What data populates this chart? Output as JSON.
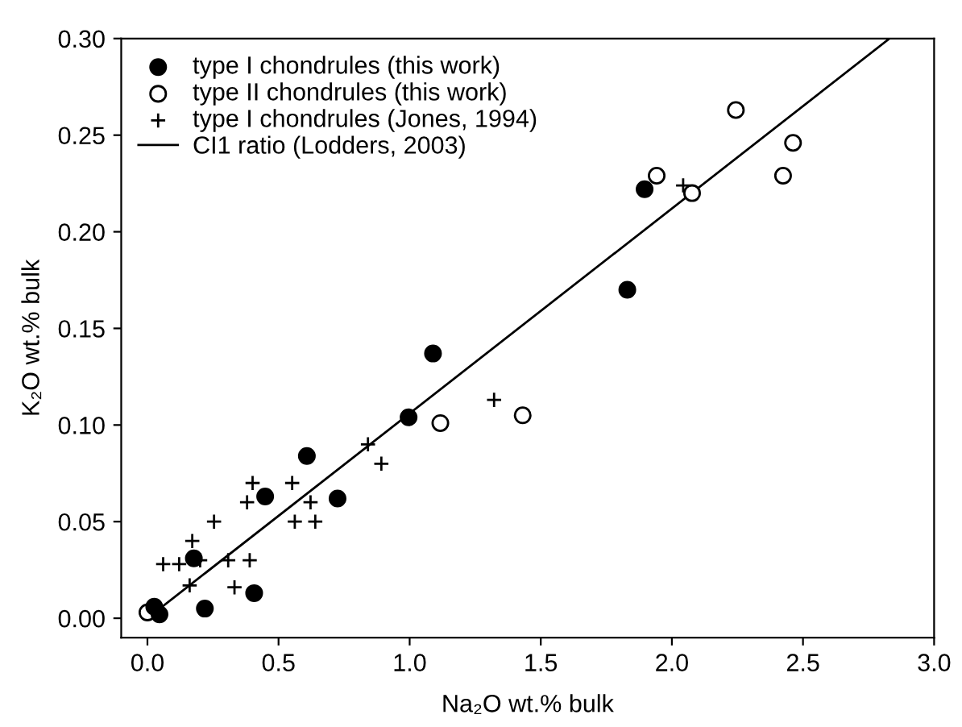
{
  "chart_data": {
    "type": "scatter",
    "xlabel": "Na₂O wt.% bulk",
    "ylabel": "K₂O wt.% bulk",
    "xlim": [
      -0.1,
      3.0
    ],
    "ylim": [
      -0.01,
      0.3
    ],
    "xticks": [
      {
        "value": 0,
        "label": "0.0"
      },
      0.5,
      {
        "value": 1,
        "label": "1.0"
      },
      1.5,
      {
        "value": 2,
        "label": "2.0"
      },
      2.5,
      {
        "value": 3,
        "label": "3.0"
      }
    ],
    "yticks": [
      {
        "value": 0,
        "label": "0.00"
      },
      0.05,
      {
        "value": 0.1,
        "label": "0.10"
      },
      0.15,
      {
        "value": 0.2,
        "label": "0.20"
      },
      0.25,
      {
        "value": 0.3,
        "label": "0.30"
      }
    ],
    "grid": false,
    "legend": "top left",
    "series": [
      {
        "name": "type I chondrules (this work)",
        "marker": "circle",
        "color": "#000000",
        "x": [
          0.026,
          0.046,
          0.177,
          0.219,
          0.407,
          0.449,
          0.608,
          0.725,
          0.996,
          1.089,
          1.896,
          1.83
        ],
        "values": [
          0.006,
          0.002,
          0.031,
          0.005,
          0.013,
          0.063,
          0.084,
          0.062,
          0.104,
          0.137,
          0.222,
          0.17
        ]
      },
      {
        "name": "type II chondrules (this work)",
        "marker": "circle",
        "color": "#ffffff",
        "x": [
          0.0,
          1.117,
          1.431,
          1.942,
          2.077,
          2.244,
          2.462,
          2.424
        ],
        "values": [
          0.003,
          0.101,
          0.105,
          0.229,
          0.22,
          0.263,
          0.246,
          0.229
        ]
      },
      {
        "name": "type I chondrules (Jones, 1994)",
        "marker": "cross",
        "color": "#000000",
        "x": [
          0.06,
          0.121,
          0.171,
          0.201,
          0.161,
          0.254,
          0.308,
          0.332,
          0.39,
          0.38,
          0.401,
          0.552,
          0.562,
          0.622,
          0.64,
          0.841,
          0.892,
          1.322,
          2.043
        ],
        "values": [
          0.028,
          0.028,
          0.04,
          0.03,
          0.017,
          0.05,
          0.03,
          0.016,
          0.03,
          0.06,
          0.07,
          0.07,
          0.05,
          0.06,
          0.05,
          0.09,
          0.08,
          0.113,
          0.224
        ]
      },
      {
        "name": "CI1 ratio (Lodders, 2003)",
        "type": "line",
        "marker": "none",
        "line_style": "solid",
        "color": "#000000",
        "x": [
          0.0,
          2.83
        ],
        "values": [
          0.0,
          0.3
        ]
      }
    ]
  }
}
